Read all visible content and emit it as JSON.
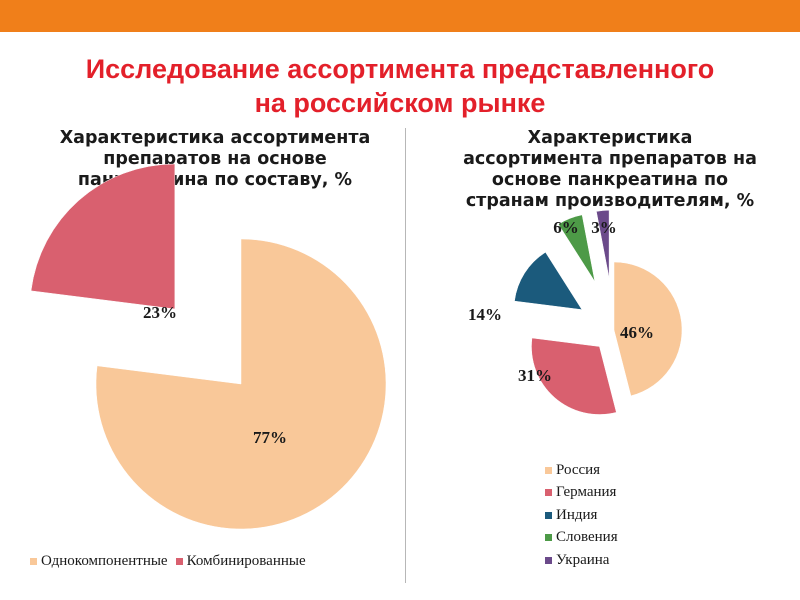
{
  "slide": {
    "title_line1": "Исследование ассортимента представленного",
    "title_line2": "на российском рынке",
    "accent_color": "#f07f1a",
    "title_color": "#e3202a"
  },
  "chart_data": [
    {
      "type": "pie",
      "exploded": true,
      "title_lines": [
        "Характеристика ассортимента",
        "препаратов на основе",
        "панкреатина по составу, %"
      ],
      "categories": [
        "Однокомпонентные",
        "Комбинированные"
      ],
      "values": [
        77,
        23
      ],
      "data_labels": [
        "77%",
        "23%"
      ],
      "colors": [
        "#f9c899",
        "#d9606f"
      ],
      "legend_position": "bottom"
    },
    {
      "type": "pie",
      "exploded": true,
      "title_lines": [
        "Характеристика",
        "ассортимента препаратов на",
        "основе панкреатина по",
        "странам производителям, %"
      ],
      "categories": [
        "Россия",
        "Германия",
        "Индия",
        "Словения",
        "Украина"
      ],
      "values": [
        46,
        31,
        14,
        6,
        3
      ],
      "data_labels": [
        "46%",
        "31%",
        "14%",
        "6%",
        "3%"
      ],
      "colors": [
        "#f9c899",
        "#d9606f",
        "#1b5a7c",
        "#4d9a47",
        "#6b4a8a"
      ],
      "legend_position": "right-bottom"
    }
  ]
}
